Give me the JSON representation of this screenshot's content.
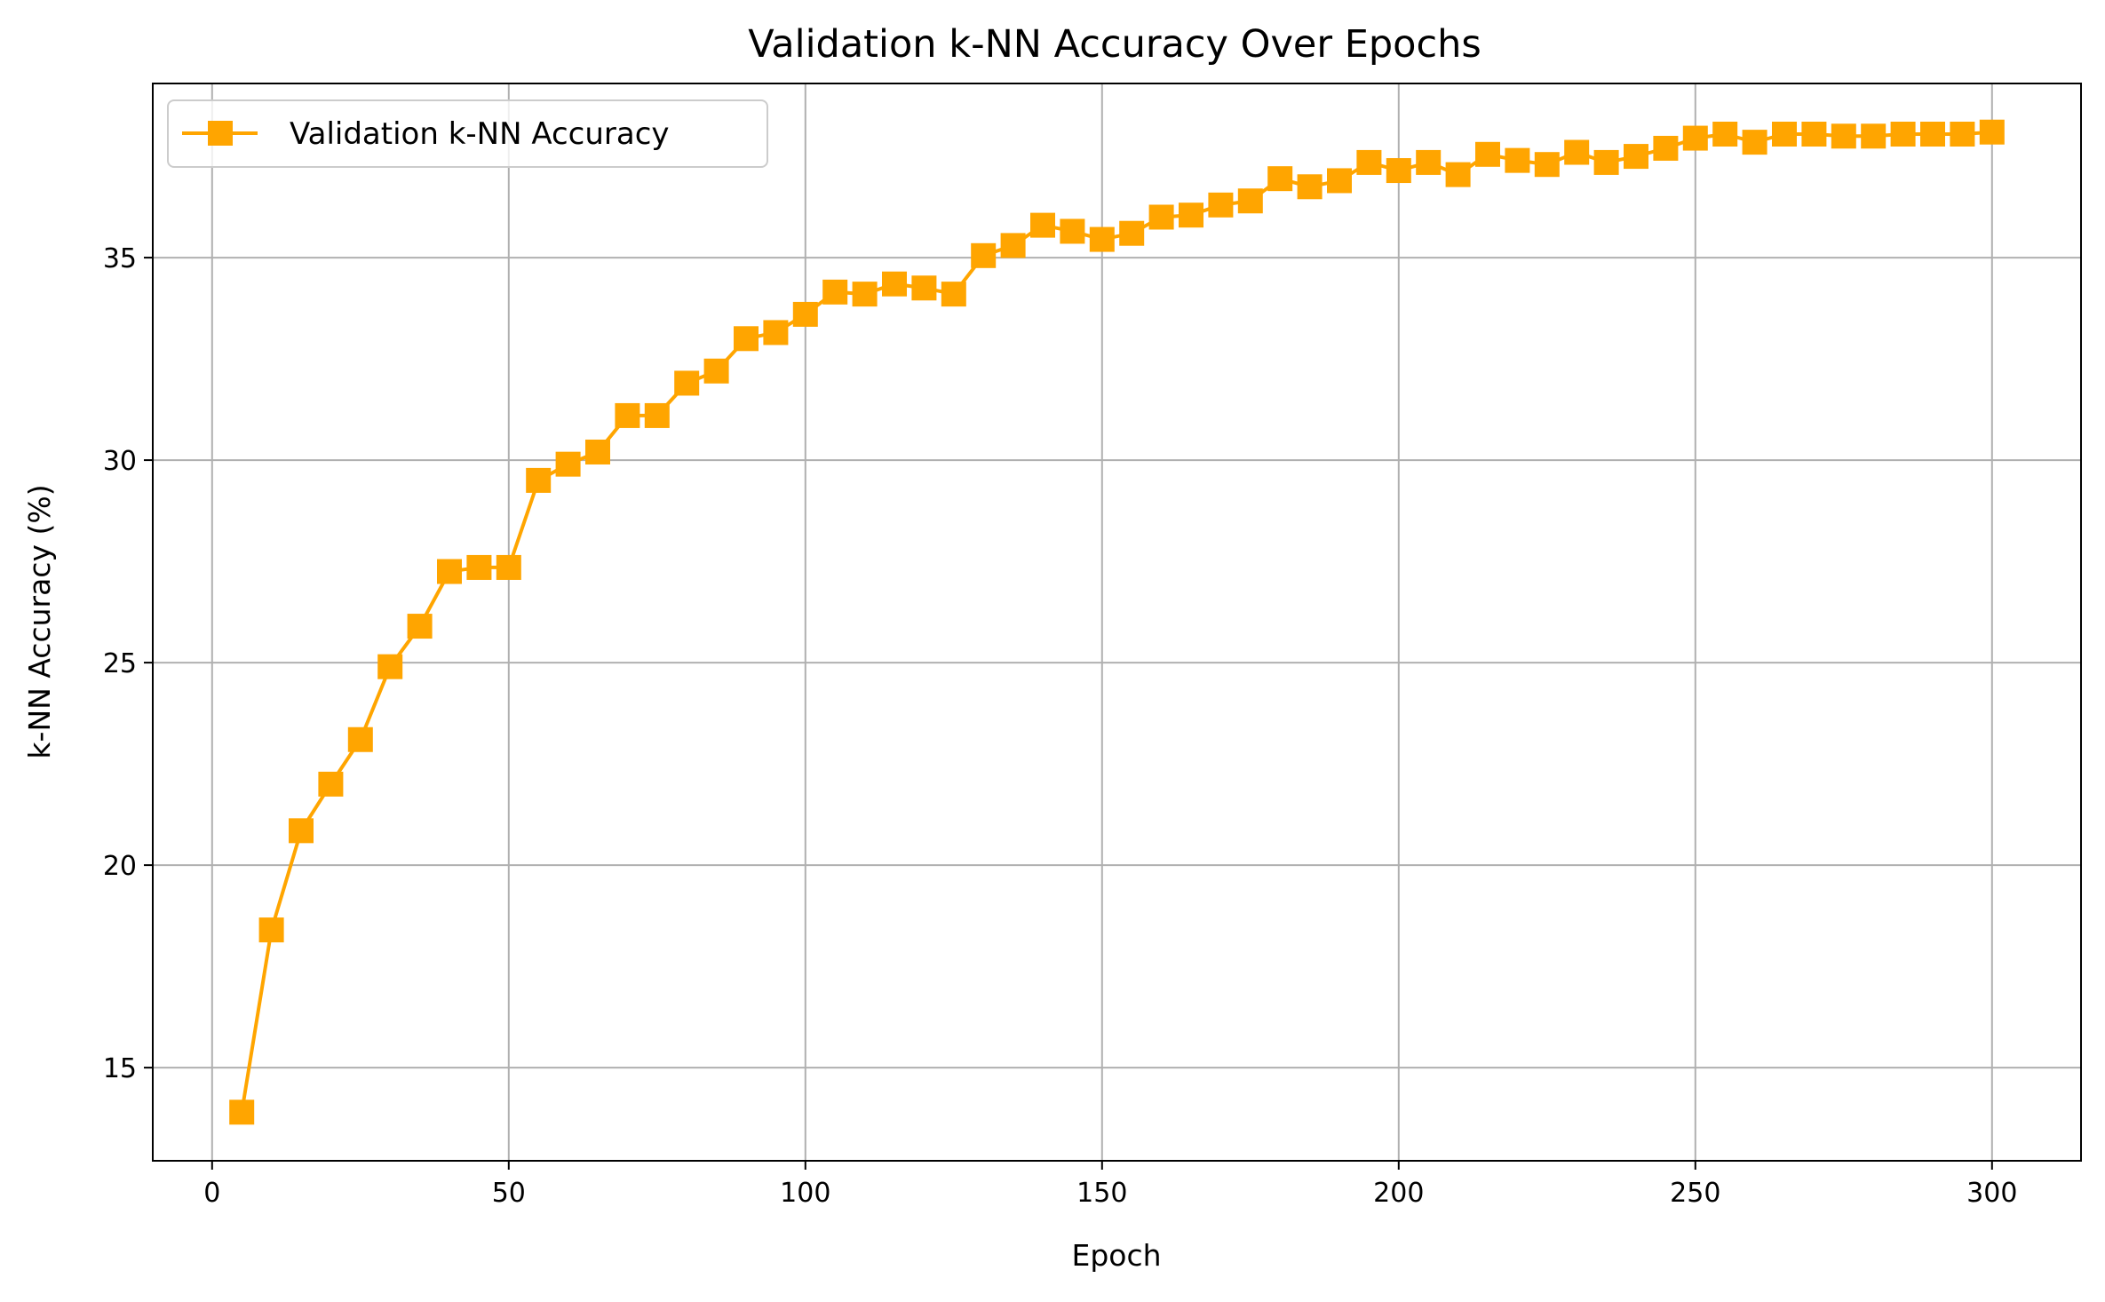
{
  "chart_data": {
    "type": "line",
    "title": "Validation k-NN Accuracy Over Epochs",
    "xlabel": "Epoch",
    "ylabel": "k-NN Accuracy (%)",
    "xlim": [
      -10,
      315
    ],
    "ylim": [
      12.7,
      39.3
    ],
    "xticks": [
      0,
      50,
      100,
      150,
      200,
      250,
      300
    ],
    "yticks": [
      15,
      20,
      25,
      30,
      35
    ],
    "grid": true,
    "legend_position": "top-left",
    "marker": "square",
    "series": [
      {
        "name": "Validation k-NN Accuracy",
        "color": "#FFA500",
        "x": [
          5,
          10,
          15,
          20,
          25,
          30,
          35,
          40,
          45,
          50,
          55,
          60,
          65,
          70,
          75,
          80,
          85,
          90,
          95,
          100,
          105,
          110,
          115,
          120,
          125,
          130,
          135,
          140,
          145,
          150,
          155,
          160,
          165,
          170,
          175,
          180,
          185,
          190,
          195,
          200,
          205,
          210,
          215,
          220,
          225,
          230,
          235,
          240,
          245,
          250,
          255,
          260,
          265,
          270,
          275,
          280,
          285,
          290,
          295,
          300
        ],
        "y": [
          13.9,
          18.4,
          20.85,
          22.0,
          23.1,
          24.9,
          25.9,
          27.25,
          27.35,
          27.35,
          29.5,
          29.9,
          30.2,
          31.1,
          31.1,
          31.9,
          32.2,
          33.0,
          33.15,
          33.6,
          34.15,
          34.1,
          34.35,
          34.25,
          34.1,
          35.05,
          35.3,
          35.8,
          35.65,
          35.45,
          35.6,
          36.0,
          36.05,
          36.3,
          36.4,
          36.95,
          36.75,
          36.9,
          37.35,
          37.15,
          37.35,
          37.05,
          37.55,
          37.4,
          37.3,
          37.6,
          37.35,
          37.5,
          37.7,
          37.95,
          38.05,
          37.85,
          38.05,
          38.05,
          38.0,
          38.0,
          38.05,
          38.05,
          38.05,
          38.1
        ]
      }
    ]
  }
}
